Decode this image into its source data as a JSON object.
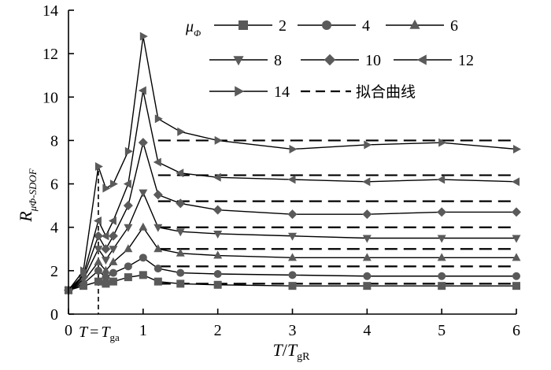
{
  "chart_data": {
    "type": "line",
    "xlabel_main": "T",
    "xlabel_slash": "/",
    "xlabel_sym": "T",
    "xlabel_sub": "gR",
    "ylabel_main": "R",
    "ylabel_sub": "μΦ-SDOF",
    "xlim": [
      0,
      6
    ],
    "ylim": [
      0,
      14
    ],
    "x_ticks": [
      "0",
      "1",
      "2",
      "3",
      "4",
      "5",
      "6"
    ],
    "y_ticks": [
      "0",
      "2",
      "4",
      "6",
      "8",
      "10",
      "12",
      "14"
    ],
    "annotation": {
      "lhs": "T",
      "eq": "=",
      "rhs": "T",
      "rhs_sub": "ga",
      "x": 0.4
    },
    "legend": {
      "title": "μ",
      "title_sub": "Φ",
      "fit_label": "拟合曲线"
    },
    "series": [
      {
        "name": "2",
        "marker": "square",
        "x": [
          0,
          0.2,
          0.4,
          0.5,
          0.6,
          0.8,
          1.0,
          1.2,
          1.5,
          2,
          3,
          4,
          5,
          6
        ],
        "y": [
          1.1,
          1.3,
          1.5,
          1.4,
          1.5,
          1.7,
          1.8,
          1.5,
          1.4,
          1.35,
          1.3,
          1.3,
          1.3,
          1.3
        ]
      },
      {
        "name": "4",
        "marker": "circle",
        "x": [
          0,
          0.2,
          0.4,
          0.5,
          0.6,
          0.8,
          1.0,
          1.2,
          1.5,
          2,
          3,
          4,
          5,
          6
        ],
        "y": [
          1.1,
          1.4,
          2.0,
          1.7,
          1.9,
          2.2,
          2.6,
          2.1,
          1.9,
          1.85,
          1.8,
          1.75,
          1.75,
          1.75
        ]
      },
      {
        "name": "6",
        "marker": "triangle-up",
        "x": [
          0,
          0.2,
          0.4,
          0.5,
          0.6,
          0.8,
          1.0,
          1.2,
          1.5,
          2,
          3,
          4,
          5,
          6
        ],
        "y": [
          1.1,
          1.5,
          2.4,
          2.0,
          2.4,
          3.0,
          4.0,
          3.0,
          2.8,
          2.7,
          2.6,
          2.6,
          2.6,
          2.6
        ]
      },
      {
        "name": "8",
        "marker": "triangle-down",
        "x": [
          0,
          0.2,
          0.4,
          0.5,
          0.6,
          0.8,
          1.0,
          1.2,
          1.5,
          2,
          3,
          4,
          5,
          6
        ],
        "y": [
          1.1,
          1.6,
          3.0,
          2.5,
          3.0,
          4.0,
          5.6,
          4.0,
          3.8,
          3.7,
          3.6,
          3.5,
          3.5,
          3.5
        ]
      },
      {
        "name": "10",
        "marker": "diamond",
        "x": [
          0,
          0.2,
          0.4,
          0.5,
          0.6,
          0.8,
          1.0,
          1.2,
          1.5,
          2,
          3,
          4,
          5,
          6
        ],
        "y": [
          1.1,
          1.7,
          3.6,
          3.0,
          3.6,
          5.0,
          7.9,
          5.5,
          5.1,
          4.8,
          4.6,
          4.6,
          4.7,
          4.7
        ]
      },
      {
        "name": "12",
        "marker": "triangle-left",
        "x": [
          0,
          0.2,
          0.4,
          0.5,
          0.6,
          0.8,
          1.0,
          1.2,
          1.5,
          2,
          3,
          4,
          5,
          6
        ],
        "y": [
          1.1,
          1.8,
          4.3,
          3.6,
          4.3,
          6.0,
          10.3,
          7.0,
          6.5,
          6.3,
          6.2,
          6.1,
          6.2,
          6.1
        ]
      },
      {
        "name": "14",
        "marker": "triangle-right",
        "x": [
          0,
          0.2,
          0.4,
          0.5,
          0.6,
          0.8,
          1.0,
          1.2,
          1.5,
          2,
          3,
          4,
          5,
          6
        ],
        "y": [
          1.1,
          2.0,
          6.8,
          5.8,
          6.0,
          7.5,
          12.8,
          9.0,
          8.4,
          8.0,
          7.6,
          7.8,
          7.9,
          7.6
        ]
      }
    ],
    "fit_lines": [
      1.4,
      2.2,
      3.0,
      4.0,
      5.2,
      6.4,
      8.0
    ]
  }
}
